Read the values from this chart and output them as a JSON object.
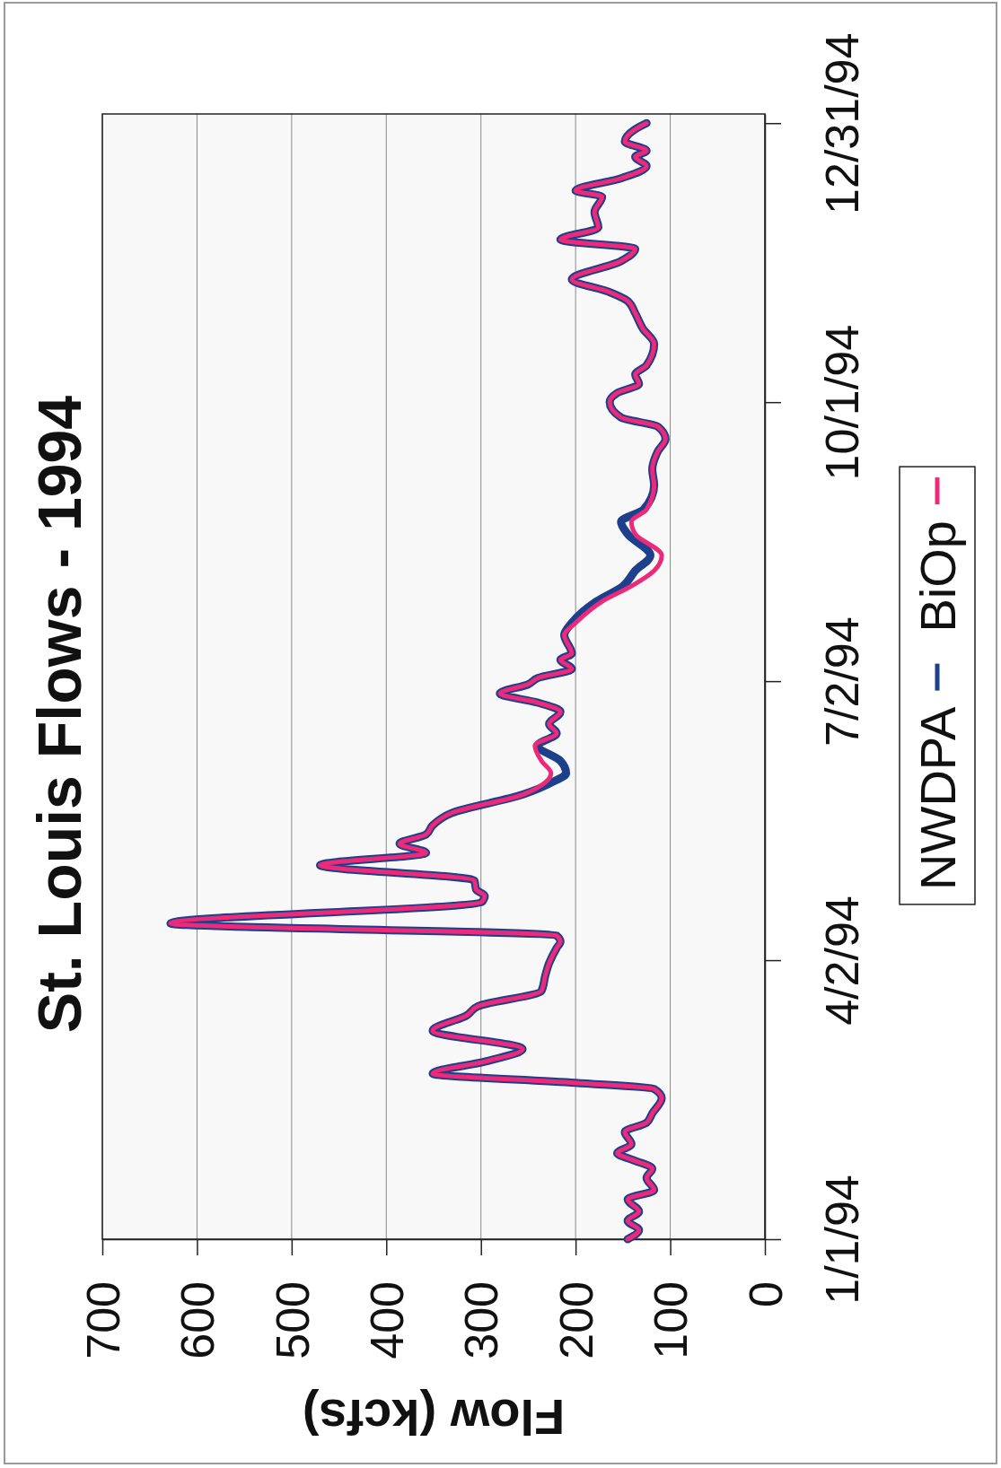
{
  "chart_data": {
    "type": "line",
    "orientation": "horizontal",
    "title": "St. Louis Flows - 1994",
    "xlabel": "Flow (kcfs)",
    "x": [
      "1994-01-01",
      "1994-01-04",
      "1994-01-07",
      "1994-01-10",
      "1994-01-14",
      "1994-01-17",
      "1994-01-21",
      "1994-01-24",
      "1994-01-27",
      "1994-01-29",
      "1994-02-01",
      "1994-02-05",
      "1994-02-08",
      "1994-02-11",
      "1994-02-16",
      "1994-02-19",
      "1994-02-21",
      "1994-02-24",
      "1994-02-28",
      "1994-03-04",
      "1994-03-10",
      "1994-03-15",
      "1994-03-18",
      "1994-03-23",
      "1994-03-28",
      "1994-04-01",
      "1994-04-06",
      "1994-04-08",
      "1994-04-10",
      "1994-04-14",
      "1994-04-21",
      "1994-04-23",
      "1994-04-25",
      "1994-04-28",
      "1994-05-03",
      "1994-05-07",
      "1994-05-10",
      "1994-05-13",
      "1994-05-16",
      "1994-05-20",
      "1994-05-26",
      "1994-05-30",
      "1994-06-02",
      "1994-06-06",
      "1994-06-11",
      "1994-06-15",
      "1994-06-18",
      "1994-06-22",
      "1994-06-25",
      "1994-06-28",
      "1994-07-01",
      "1994-07-03",
      "1994-07-06",
      "1994-07-09",
      "1994-07-11",
      "1994-07-17",
      "1994-07-21",
      "1994-07-28",
      "1994-08-02",
      "1994-08-07",
      "1994-08-12",
      "1994-08-19",
      "1994-08-23",
      "1994-08-27",
      "1994-09-04",
      "1994-09-09",
      "1994-09-15",
      "1994-09-19",
      "1994-09-23",
      "1994-09-26",
      "1994-10-01",
      "1994-10-04",
      "1994-10-07",
      "1994-10-10",
      "1994-10-13",
      "1994-10-20",
      "1994-10-25",
      "1994-10-30",
      "1994-11-03",
      "1994-11-06",
      "1994-11-10",
      "1994-11-16",
      "1994-11-20",
      "1994-11-23",
      "1994-11-27",
      "1994-12-02",
      "1994-12-07",
      "1994-12-09",
      "1994-12-13",
      "1994-12-17",
      "1994-12-20",
      "1994-12-22",
      "1994-12-25",
      "1994-12-29",
      "1994-12-31"
    ],
    "xlim": [
      700,
      0
    ],
    "xticks": [
      0,
      100,
      200,
      300,
      400,
      500,
      600,
      700
    ],
    "ylim": [
      "1994-01-01",
      "1995-01-03"
    ],
    "yticks": [
      {
        "value": "1994-01-01",
        "label": "1/1/94"
      },
      {
        "value": "1994-04-02",
        "label": "4/2/94"
      },
      {
        "value": "1994-07-02",
        "label": "7/2/94"
      },
      {
        "value": "1994-10-01",
        "label": "10/1/94"
      },
      {
        "value": "1994-12-31",
        "label": "12/31/94"
      }
    ],
    "grid": "x",
    "legend": "right",
    "series": [
      {
        "name": "NWDPA",
        "color": "#1d3f8c",
        "values": [
          145,
          133,
          145,
          133,
          145,
          117,
          125,
          119,
          141,
          156,
          141,
          148,
          125,
          119,
          109,
          117,
          200,
          351,
          295,
          256,
          351,
          315,
          303,
          236,
          232,
          228,
          220,
          216,
          220,
          628,
          299,
          296,
          305,
          307,
          470,
          358,
          386,
          358,
          351,
          331,
          256,
          225,
          210,
          216,
          240,
          220,
          228,
          216,
          240,
          280,
          250,
          240,
          204,
          216,
          204,
          212,
          204,
          178,
          150,
          137,
          121,
          145,
          152,
          128,
          117,
          119,
          113,
          105,
          113,
          152,
          164,
          156,
          133,
          137,
          125,
          117,
          129,
          137,
          145,
          165,
          204,
          152,
          137,
          216,
          176,
          180,
          172,
          200,
          152,
          125,
          137,
          125,
          148,
          137,
          125
        ]
      },
      {
        "name": "BiOp",
        "color": "#ec2a78",
        "values": [
          145,
          133,
          145,
          133,
          145,
          117,
          125,
          119,
          141,
          156,
          141,
          148,
          125,
          119,
          109,
          117,
          200,
          351,
          295,
          256,
          351,
          315,
          303,
          236,
          232,
          228,
          220,
          216,
          220,
          628,
          299,
          296,
          305,
          307,
          470,
          358,
          386,
          358,
          351,
          331,
          256,
          232,
          226,
          236,
          243,
          220,
          228,
          216,
          240,
          280,
          250,
          240,
          204,
          216,
          204,
          212,
          200,
          172,
          141,
          117,
          109,
          137,
          141,
          125,
          117,
          119,
          113,
          105,
          113,
          152,
          164,
          156,
          133,
          137,
          125,
          117,
          129,
          137,
          145,
          165,
          204,
          152,
          137,
          216,
          176,
          180,
          172,
          200,
          152,
          125,
          137,
          125,
          148,
          137,
          125
        ]
      }
    ]
  }
}
